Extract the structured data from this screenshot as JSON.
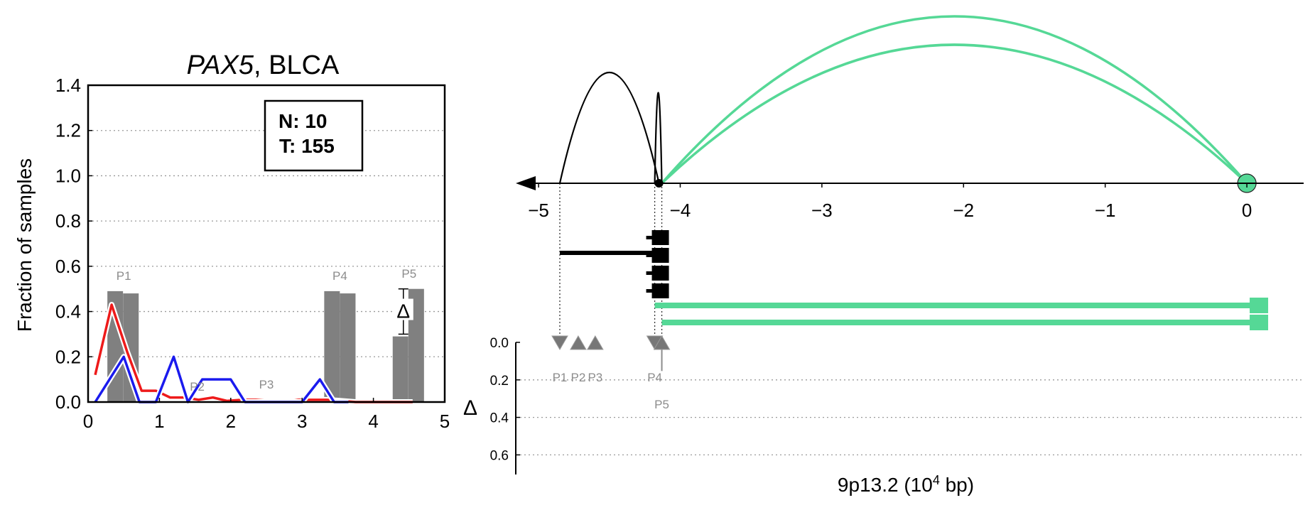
{
  "colors": {
    "tumor": "#ee1a1a",
    "normal": "#1a1aee",
    "bar": "#808080",
    "green": "#55d896",
    "black": "#000000",
    "peak_label": "#8c8c8c"
  },
  "chart_data": [
    {
      "type": "line",
      "title_gene": "PAX5",
      "title_rest": ", BLCA",
      "ylabel": "Fraction of samples",
      "xlim": [
        0,
        5
      ],
      "ylim": [
        0,
        1.4
      ],
      "x_ticks": [
        "0",
        "1",
        "2",
        "3",
        "4",
        "5"
      ],
      "y_ticks": [
        "0.0",
        "0.2",
        "0.4",
        "0.6",
        "0.8",
        "1.0",
        "1.2",
        "1.4"
      ],
      "grid": "horizontal dotted",
      "legend_box": {
        "line1": "N: 10",
        "line2": "T: 155"
      },
      "series": [
        {
          "key": "tumor",
          "x": [
            0.1,
            0.33,
            0.55,
            0.75,
            0.95,
            1.15,
            1.35,
            1.55,
            1.75,
            1.95,
            2.15,
            2.35,
            2.55,
            2.75,
            2.95,
            3.15,
            3.35,
            3.55,
            3.75,
            3.95,
            4.15,
            4.35,
            4.55
          ],
          "y": [
            0.12,
            0.43,
            0.22,
            0.05,
            0.05,
            0.02,
            0.02,
            0.01,
            0.02,
            0.005,
            0.01,
            0.01,
            0.005,
            0.0,
            0.01,
            0.01,
            0.01,
            0.005,
            0.0,
            0.0,
            0.0,
            0.0,
            0.0
          ]
        },
        {
          "key": "normal",
          "x": [
            0.1,
            0.5,
            0.72,
            0.95,
            1.2,
            1.4,
            1.6,
            1.8,
            2.0,
            2.2,
            2.4,
            2.6,
            2.8,
            3.0,
            3.25,
            3.45,
            3.65
          ],
          "y": [
            0.0,
            0.2,
            0.0,
            0.0,
            0.2,
            0.0,
            0.1,
            0.1,
            0.1,
            0.0,
            0.0,
            0.0,
            0.0,
            0.0,
            0.1,
            0.0,
            0.0
          ]
        }
      ],
      "bars": [
        {
          "x": 0.38,
          "height": 0.49
        },
        {
          "x": 0.6,
          "height": 0.48
        },
        {
          "x": 3.42,
          "height": 0.49
        },
        {
          "x": 3.64,
          "height": 0.48
        },
        {
          "x": 4.38,
          "height": 0.29
        },
        {
          "x": 4.6,
          "height": 0.5
        }
      ],
      "delta_marker": {
        "x": 4.42,
        "y_low": 0.3,
        "y_high": 0.5,
        "label": "Δ"
      },
      "peak_labels": [
        {
          "label": "P1",
          "x": 0.5,
          "y": 0.54
        },
        {
          "label": "P2",
          "x": 1.53,
          "y": 0.05
        },
        {
          "label": "P3",
          "x": 2.5,
          "y": 0.06
        },
        {
          "label": "P4",
          "x": 3.53,
          "y": 0.54
        },
        {
          "label": "P5",
          "x": 4.5,
          "y": 0.55
        }
      ]
    },
    {
      "type": "diagram",
      "xlabel_prefix": "9p13.2 (10",
      "xlabel_exp": "4",
      "xlabel_suffix": " bp)",
      "xlim": [
        -5.1,
        0.3
      ],
      "x_ticks": [
        {
          "v": -5,
          "label": "−5"
        },
        {
          "v": -4,
          "label": "−4"
        },
        {
          "v": -3,
          "label": "−3"
        },
        {
          "v": -2,
          "label": "−2"
        },
        {
          "v": -1,
          "label": "−1"
        },
        {
          "v": 0,
          "label": "0"
        }
      ],
      "black_arcs": [
        {
          "start": -4.85,
          "end": -4.15,
          "height": 1.0
        },
        {
          "start": -4.18,
          "end": -4.13,
          "height": 0.8
        }
      ],
      "green_arcs": [
        {
          "start": -4.13,
          "end": 0.0,
          "height": 1.0
        },
        {
          "start": -4.13,
          "end": 0.0,
          "height": 0.82
        }
      ],
      "black_transcript": {
        "start": -4.85,
        "end": -4.13,
        "exons": 4
      },
      "green_transcripts": [
        {
          "start": -4.18,
          "end": 0.06
        },
        {
          "start": -4.13,
          "end": 0.06
        }
      ],
      "delta_axis_label": "Δ",
      "delta_ticks": [
        "0.0",
        "0.2",
        "0.4",
        "0.6"
      ],
      "promoter_markers": [
        {
          "label": "P1",
          "x": -4.85,
          "delta": 0.0,
          "dir": "down"
        },
        {
          "label": "P2",
          "x": -4.72,
          "delta": 0.0,
          "dir": "up"
        },
        {
          "label": "P3",
          "x": -4.6,
          "delta": 0.0,
          "dir": "up"
        },
        {
          "label": "P4",
          "x": -4.18,
          "delta": 0.0,
          "dir": "down"
        },
        {
          "label": "P5",
          "x": -4.13,
          "delta": 0.13,
          "dir": "up"
        }
      ]
    }
  ]
}
